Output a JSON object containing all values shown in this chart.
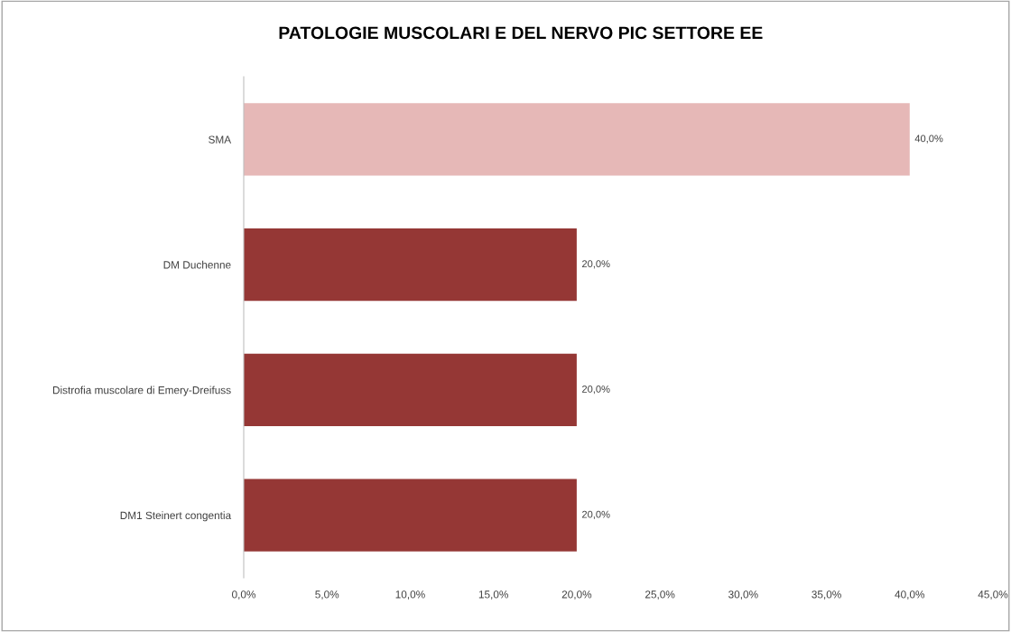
{
  "chart_data": {
    "type": "bar",
    "orientation": "horizontal",
    "title": "PATOLOGIE MUSCOLARI E DEL NERVO PIC SETTORE EE",
    "categories": [
      "SMA",
      "DM Duchenne",
      "Distrofia muscolare di Emery-Dreifuss",
      "DM1 Steinert congentia"
    ],
    "values": [
      40,
      20,
      20,
      20
    ],
    "colors": [
      "#e6b8b7",
      "#953735",
      "#953735",
      "#953735"
    ],
    "value_labels": [
      "40,0%",
      "20,0%",
      "20,0%",
      "20,0%"
    ],
    "xlim": [
      0,
      45
    ],
    "xticks": [
      {
        "value": 0,
        "label": "0,0%"
      },
      {
        "value": 5,
        "label": "5,0%"
      },
      {
        "value": 10,
        "label": "10,0%"
      },
      {
        "value": 15,
        "label": "15,0%"
      },
      {
        "value": 20,
        "label": "20,0%"
      },
      {
        "value": 25,
        "label": "25,0%"
      },
      {
        "value": 30,
        "label": "30,0%"
      },
      {
        "value": 35,
        "label": "35,0%"
      },
      {
        "value": 40,
        "label": "40,0%"
      },
      {
        "value": 45,
        "label": "45,0%"
      }
    ],
    "grid": false,
    "legend": false
  }
}
